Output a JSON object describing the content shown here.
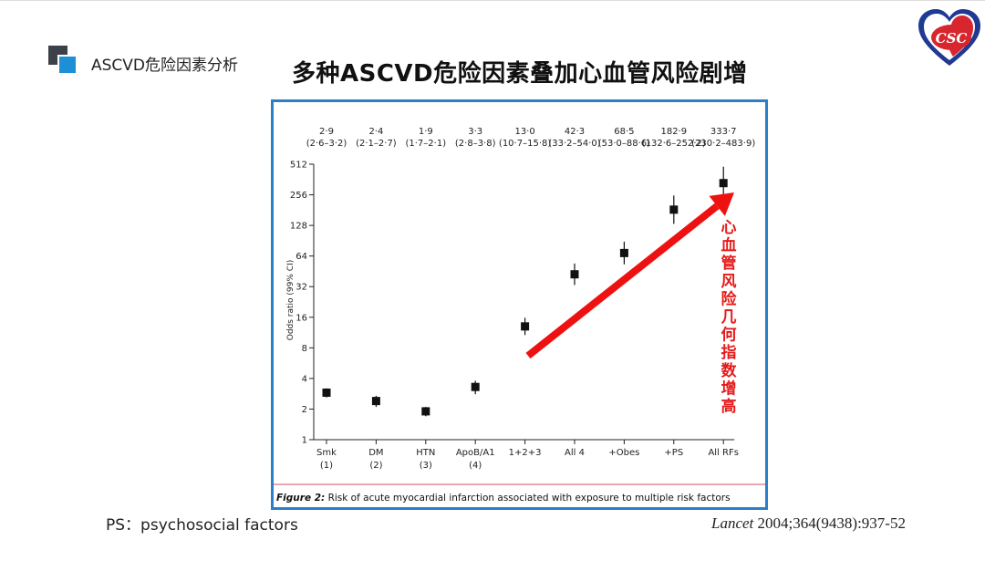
{
  "section": {
    "title": "ASCVD危险因素分析"
  },
  "page": {
    "title": "多种ASCVD危险因素叠加心血管风险剧增"
  },
  "logo": {
    "text": "CSC",
    "colors": {
      "blue": "#1f3a93",
      "red": "#d7262e"
    }
  },
  "chart_data": {
    "type": "scatter",
    "title": "",
    "xlabel": "",
    "ylabel": "Odds ratio (99% CI)",
    "yscale": "log2",
    "ylim": [
      1,
      512
    ],
    "yticks": [
      1,
      2,
      4,
      8,
      16,
      32,
      64,
      128,
      256,
      512
    ],
    "categories": [
      {
        "label": "Smk",
        "sub": "(1)"
      },
      {
        "label": "DM",
        "sub": "(2)"
      },
      {
        "label": "HTN",
        "sub": "(3)"
      },
      {
        "label": "ApoB/A1",
        "sub": "(4)"
      },
      {
        "label": "1+2+3",
        "sub": ""
      },
      {
        "label": "All 4",
        "sub": ""
      },
      {
        "label": "+Obes",
        "sub": ""
      },
      {
        "label": "+PS",
        "sub": ""
      },
      {
        "label": "All RFs",
        "sub": ""
      }
    ],
    "points": [
      {
        "or": 2.9,
        "lo": 2.6,
        "hi": 3.2,
        "or_text": "2·9",
        "ci_text": "(2·6–3·2)"
      },
      {
        "or": 2.4,
        "lo": 2.1,
        "hi": 2.7,
        "or_text": "2·4",
        "ci_text": "(2·1–2·7)"
      },
      {
        "or": 1.9,
        "lo": 1.7,
        "hi": 2.1,
        "or_text": "1·9",
        "ci_text": "(1·7–2·1)"
      },
      {
        "or": 3.3,
        "lo": 2.8,
        "hi": 3.8,
        "or_text": "3·3",
        "ci_text": "(2·8–3·8)"
      },
      {
        "or": 13.0,
        "lo": 10.7,
        "hi": 15.8,
        "or_text": "13·0",
        "ci_text": "(10·7–15·8)"
      },
      {
        "or": 42.3,
        "lo": 33.2,
        "hi": 54.0,
        "or_text": "42·3",
        "ci_text": "(33·2–54·0)"
      },
      {
        "or": 68.5,
        "lo": 53.0,
        "hi": 88.6,
        "or_text": "68·5",
        "ci_text": "(53·0–88·6)"
      },
      {
        "or": 182.9,
        "lo": 132.6,
        "hi": 252.2,
        "or_text": "182·9",
        "ci_text": "(132·6–252·2)"
      },
      {
        "or": 333.7,
        "lo": 230.2,
        "hi": 483.9,
        "or_text": "333·7",
        "ci_text": "(230·2–483·9)"
      }
    ],
    "caption_label": "Figure 2:",
    "caption_text": "Risk of acute myocardial infarction associated with exposure to multiple risk factors",
    "annotation": "心血管风险几何指数增高",
    "arrow_color": "#ee1111",
    "frame_color": "#2a7fc9"
  },
  "footer": {
    "ps_note": "PS：psychosocial factors",
    "citation_journal": "Lancet",
    "citation_rest": " 2004;364(9438):937-52"
  }
}
